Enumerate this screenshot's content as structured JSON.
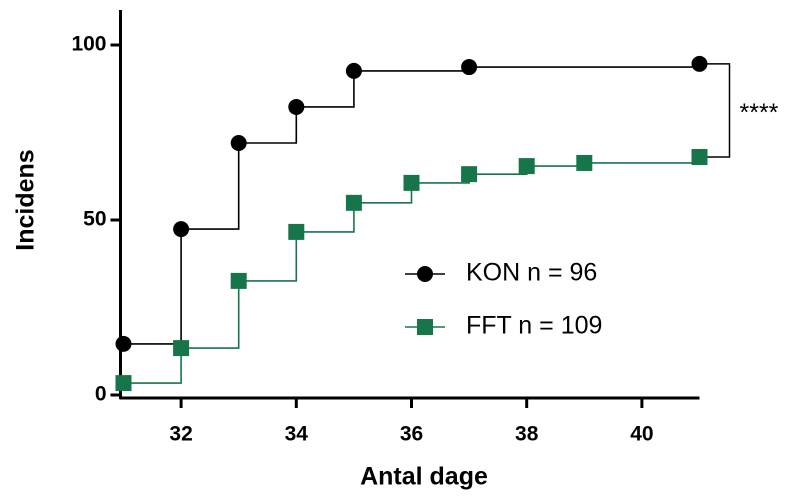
{
  "chart_data": {
    "type": "line",
    "step": "post",
    "x_label": "Antal dage",
    "y_label": "Incidens",
    "xlim": [
      31,
      41
    ],
    "ylim": [
      0,
      110
    ],
    "xticks": [
      32,
      34,
      36,
      38,
      40
    ],
    "yticks": [
      0,
      50,
      100
    ],
    "series": [
      {
        "name": "KON n = 96",
        "color": "#000000",
        "marker": "circle",
        "x": [
          31,
          32,
          33,
          34,
          35,
          37,
          41
        ],
        "values": [
          14.6,
          47.4,
          72,
          82.3,
          92.6,
          93.7,
          94.6
        ]
      },
      {
        "name": "FFT  n = 109",
        "color": "#17754a",
        "marker": "square",
        "x": [
          31,
          32,
          33,
          34,
          35,
          36,
          37,
          38,
          39,
          41
        ],
        "values": [
          3.4,
          13.4,
          32.6,
          46.6,
          54.9,
          60.6,
          63.1,
          65.4,
          66.3,
          68
        ]
      }
    ],
    "annotation": "****"
  }
}
